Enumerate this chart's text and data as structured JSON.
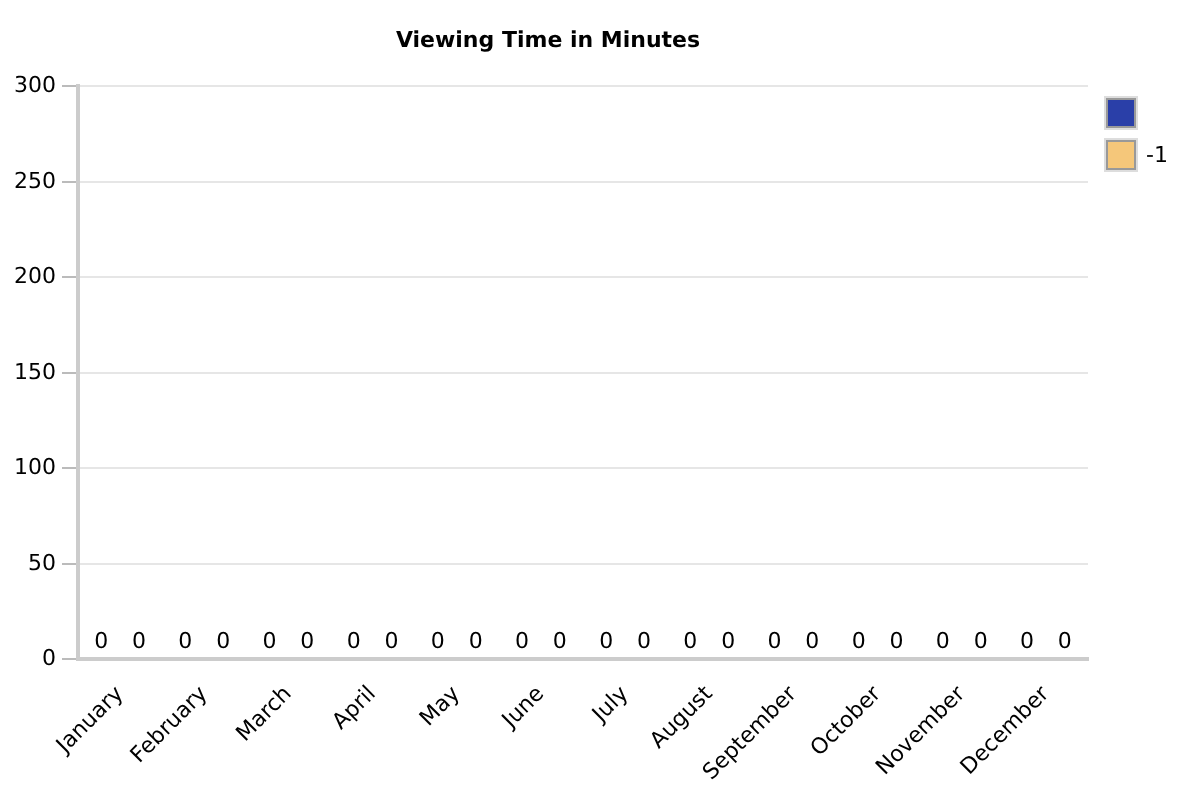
{
  "chart_data": {
    "type": "bar",
    "title": "Viewing Time in Minutes",
    "categories": [
      "January",
      "February",
      "March",
      "April",
      "May",
      "June",
      "July",
      "August",
      "September",
      "October",
      "November",
      "December"
    ],
    "series": [
      {
        "color": "#2a3fa8",
        "values": [
          0,
          0,
          0,
          0,
          0,
          0,
          0,
          0,
          0,
          0,
          0,
          0
        ]
      },
      {
        "name": "-1",
        "color": "#f5c77a",
        "values": [
          0,
          0,
          0,
          0,
          0,
          0,
          0,
          0,
          0,
          0,
          0,
          0
        ]
      }
    ],
    "ylim": [
      0,
      300
    ],
    "yticks": [
      0,
      50,
      100,
      150,
      200,
      250,
      300
    ],
    "grid": "y",
    "legend": "top right",
    "data_labels": true
  }
}
